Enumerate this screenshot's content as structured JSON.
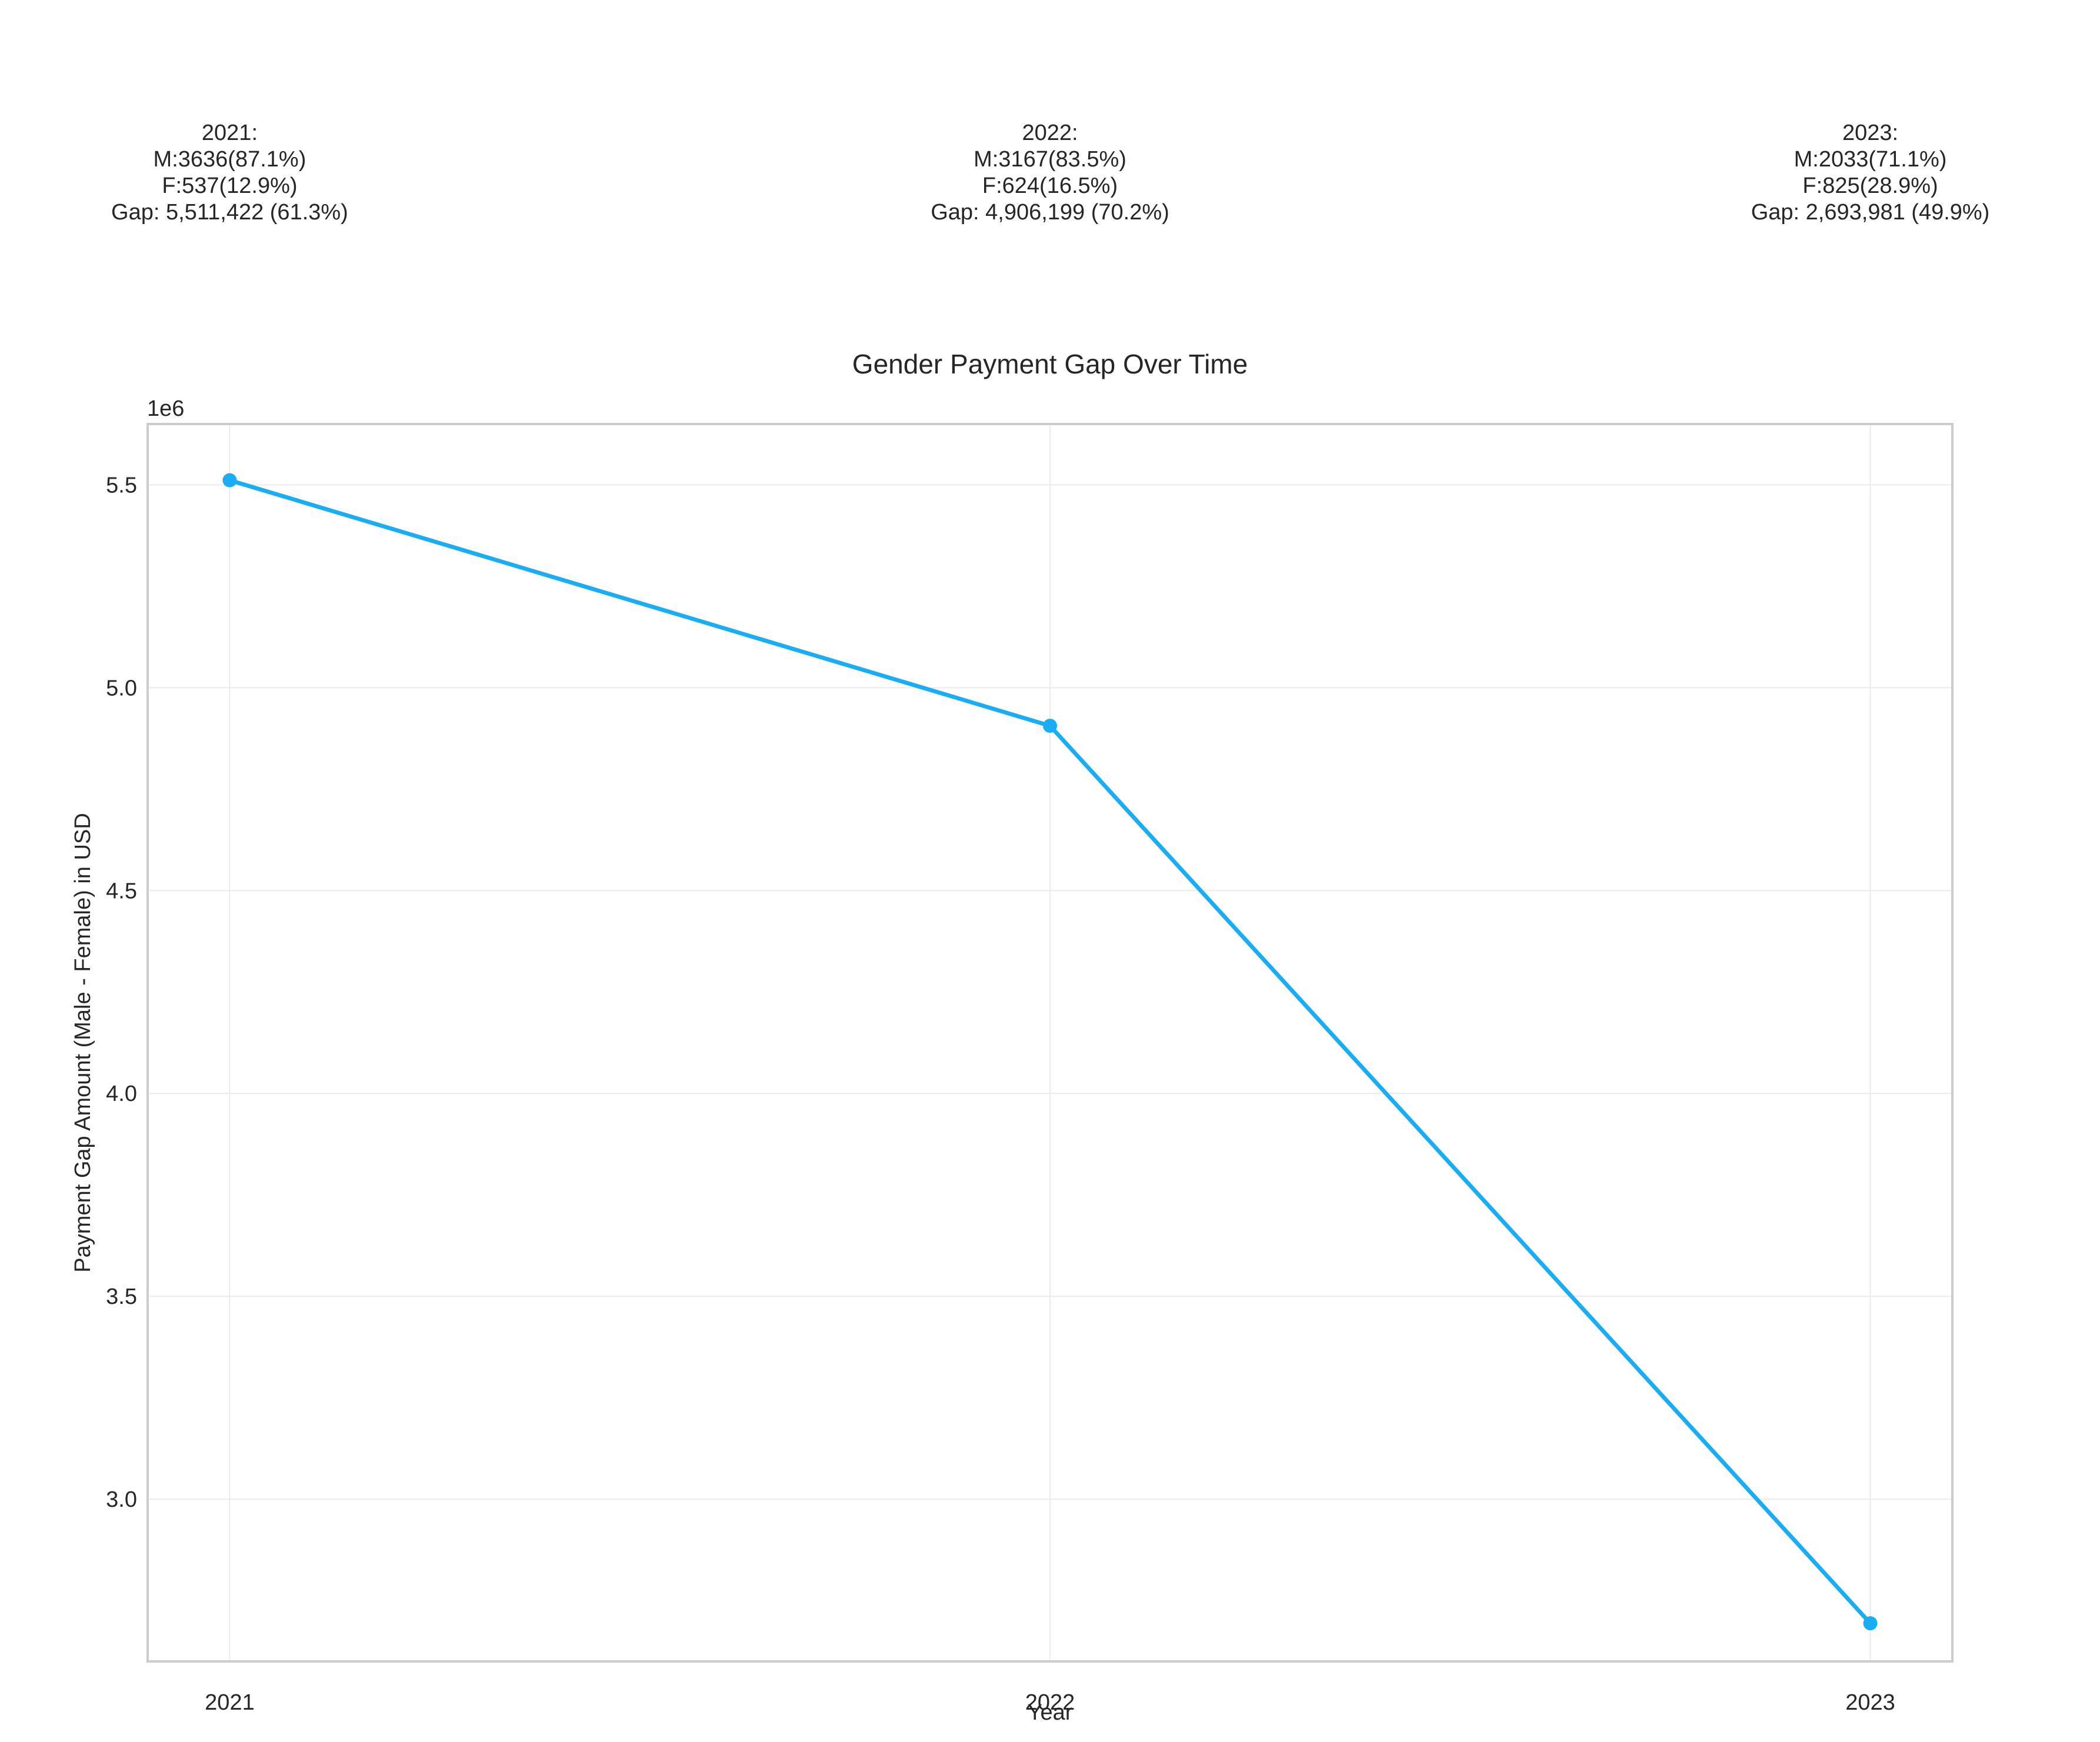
{
  "chart_data": {
    "type": "line",
    "title": "Gender Payment Gap Over Time",
    "xlabel": "Year",
    "ylabel": "Payment Gap Amount (Male - Female) in USD",
    "y_offset_label": "1e6",
    "x": [
      2021,
      2022,
      2023
    ],
    "x_tick_labels": [
      "2021",
      "2022",
      "2023"
    ],
    "y_ticks": [
      3.0,
      3.5,
      4.0,
      4.5,
      5.0,
      5.5
    ],
    "y_tick_labels": [
      "3.0",
      "3.5",
      "4.0",
      "4.5",
      "5.0",
      "5.5"
    ],
    "ylim": [
      2.6,
      5.65
    ],
    "xlim": [
      2020.9,
      2023.1
    ],
    "series": [
      {
        "values": [
          5.511422,
          4.906199,
          2.693981
        ],
        "color": "#1aadf3"
      }
    ],
    "annotations": [
      {
        "x": 2021,
        "lines": [
          "2021:",
          "M:3636(87.1%)",
          "F:537(12.9%)",
          "Gap: 5,511,422 (61.3%)"
        ]
      },
      {
        "x": 2022,
        "lines": [
          "2022:",
          "M:3167(83.5%)",
          "F:624(16.5%)",
          "Gap: 4,906,199 (70.2%)"
        ]
      },
      {
        "x": 2023,
        "lines": [
          "2023:",
          "M:2033(71.1%)",
          "F:825(28.9%)",
          "Gap: 2,693,981 (49.9%)"
        ]
      }
    ],
    "grid": true,
    "style": {
      "line_color": "#1aadf3",
      "grid_color": "#ebebeb",
      "frame_color": "#cccccc",
      "text_color": "#262626"
    }
  }
}
